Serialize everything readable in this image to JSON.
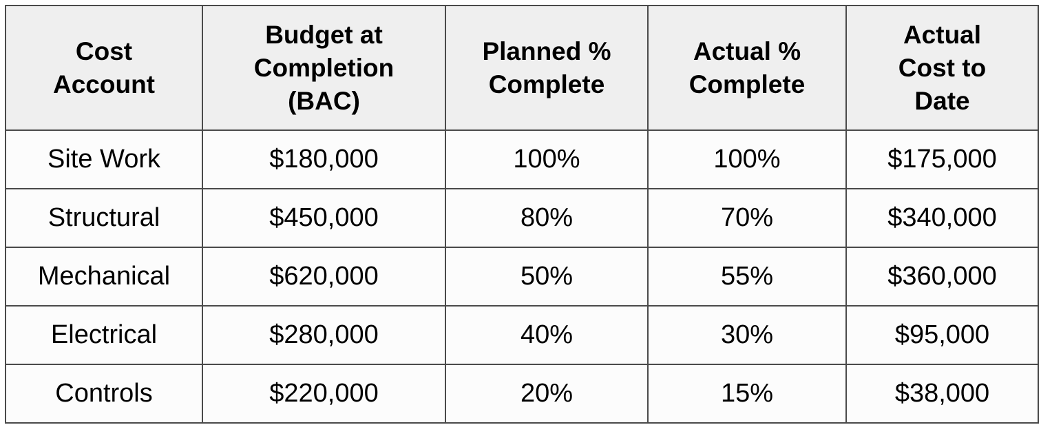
{
  "table": {
    "header": [
      "Cost Account",
      "Budget at Completion (BAC)",
      "Planned % Complete",
      "Actual % Complete",
      "Actual Cost to Date"
    ],
    "rows": [
      [
        "Site Work",
        "$180,000",
        "100%",
        "100%",
        "$175,000"
      ],
      [
        "Structural",
        "$450,000",
        "80%",
        "70%",
        "$340,000"
      ],
      [
        "Mechanical",
        "$620,000",
        "50%",
        "55%",
        "$360,000"
      ],
      [
        "Electrical",
        "$280,000",
        "40%",
        "30%",
        "$95,000"
      ],
      [
        "Controls",
        "$220,000",
        "20%",
        "15%",
        "$38,000"
      ]
    ]
  }
}
